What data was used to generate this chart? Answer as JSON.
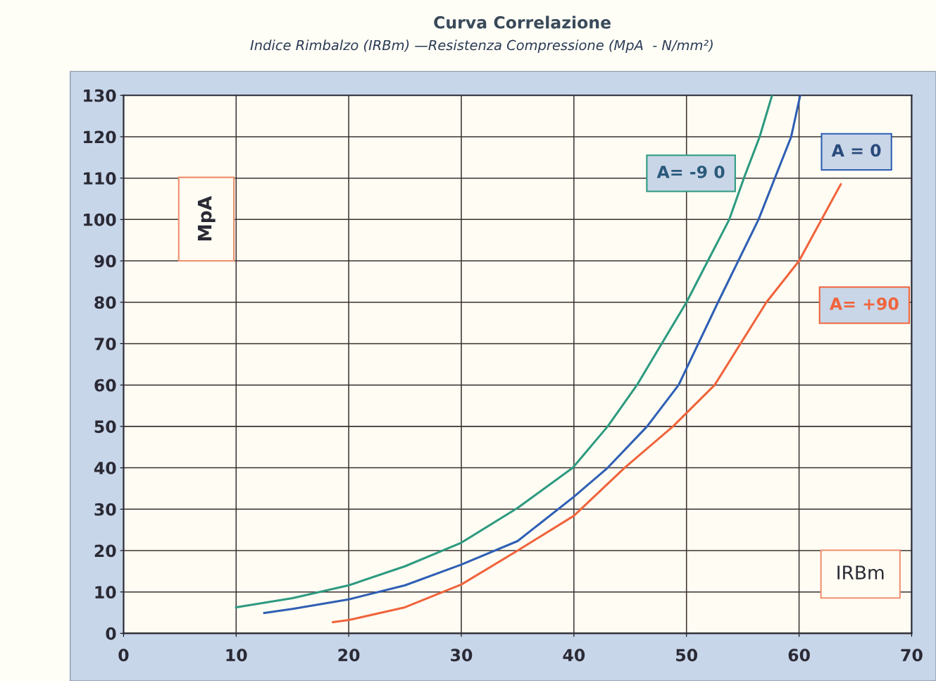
{
  "chart_data": {
    "type": "line",
    "title": "Curva Correlazione",
    "subtitle": "Indice Rimbalzo (IRBm) —Resistenza Compressione (MpA  - N/mm²)",
    "xlabel": "IRBm",
    "ylabel": "MpA",
    "xlim": [
      0,
      70
    ],
    "xticks": [
      0,
      10,
      20,
      30,
      40,
      50,
      60,
      70
    ],
    "ylim": [
      0,
      130
    ],
    "yticks": [
      0,
      10,
      20,
      30,
      40,
      50,
      60,
      70,
      80,
      90,
      100,
      110,
      120,
      130
    ],
    "grid": true,
    "marker": "none",
    "line_style": "solid",
    "series": [
      {
        "name": "A= -9 0",
        "color": "#2e9a80",
        "x": [
          10,
          15,
          20,
          25,
          30,
          35,
          39.9,
          43,
          45.6,
          50,
          51.9,
          53.8,
          55.1,
          56.5,
          57.6
        ],
        "values": [
          6.3,
          8.5,
          11.6,
          16.2,
          21.9,
          30.3,
          40,
          50,
          60,
          80,
          90,
          100,
          110,
          120,
          130
        ]
      },
      {
        "name": "A = 0",
        "color": "#2f5fb5",
        "x": [
          12.5,
          15,
          20,
          25,
          30,
          35,
          40,
          43,
          46.5,
          49.3,
          52.8,
          56.4,
          59.3,
          60.1
        ],
        "values": [
          4.9,
          5.9,
          8.2,
          11.6,
          16.6,
          22.3,
          33,
          40,
          50,
          60,
          80,
          100,
          120,
          130
        ]
      },
      {
        "name": "A= +90",
        "color": "#f0643c",
        "x": [
          18.6,
          20,
          25,
          30,
          35,
          40,
          44.5,
          48.8,
          52.5,
          57.1,
          60,
          62,
          63.7
        ],
        "values": [
          2.7,
          3.2,
          6.3,
          11.8,
          20,
          28.4,
          40,
          50,
          60,
          80,
          90,
          100,
          108.5
        ]
      }
    ]
  }
}
